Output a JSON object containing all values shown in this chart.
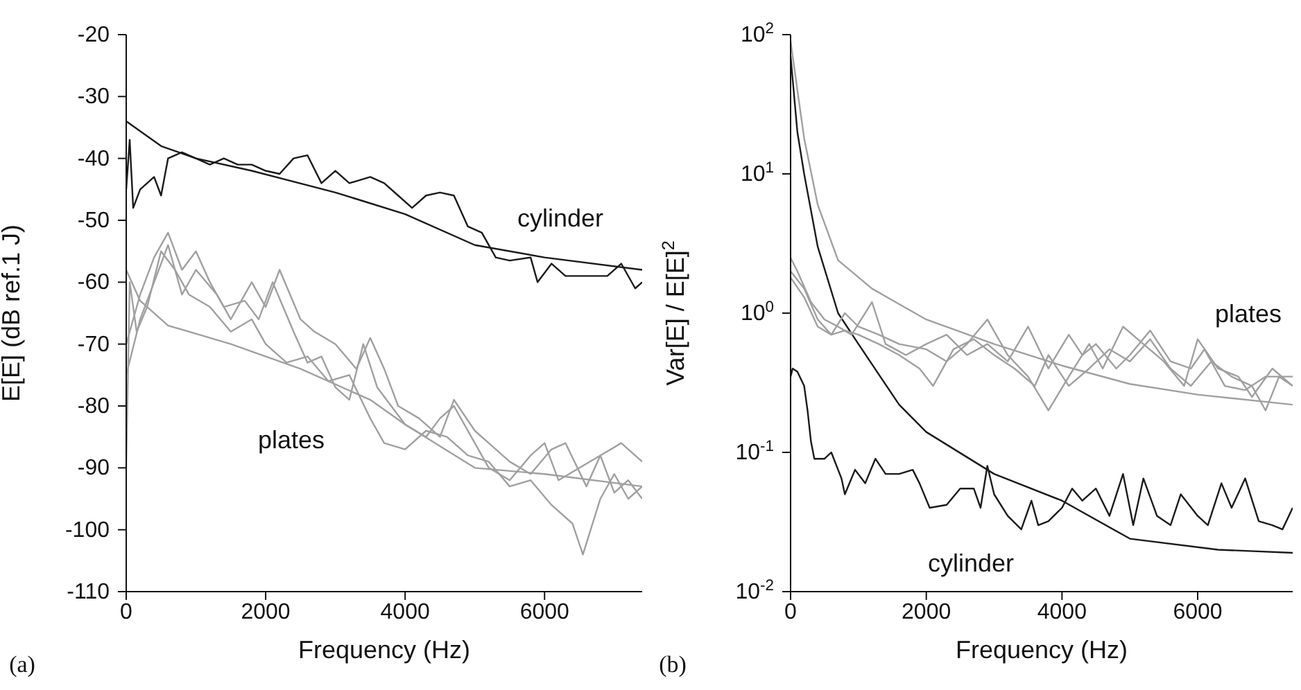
{
  "chart_data": [
    {
      "type": "line",
      "xlabel": "Frequency (Hz)",
      "ylabel": "E[E] (dB ref.1 J)",
      "xlim": [
        0,
        7400
      ],
      "xticks": [
        0,
        2000,
        4000,
        6000
      ],
      "ylim": [
        -110,
        -20
      ],
      "yticks": [
        -110,
        -100,
        -90,
        -80,
        -70,
        -60,
        -50,
        -40,
        -30,
        -20
      ],
      "grid": false,
      "legend": false,
      "marker": "none",
      "line_style": "solid",
      "annotations": [
        "cylinder",
        "plates",
        "(a)"
      ],
      "series": [
        {
          "color": "#1a1a1a",
          "x": [
            0,
            500,
            1000,
            1800,
            3000,
            4000,
            5000,
            6000,
            7400
          ],
          "values": [
            -34,
            -38,
            -40,
            -42,
            -45.5,
            -49,
            -54,
            -56,
            -58
          ]
        },
        {
          "color": "#1a1a1a",
          "x": [
            0,
            50,
            100,
            200,
            400,
            500,
            600,
            800,
            1000,
            1200,
            1400,
            1600,
            1800,
            2000,
            2200,
            2400,
            2600,
            2800,
            3000,
            3200,
            3500,
            3700,
            3900,
            4100,
            4300,
            4500,
            4700,
            4900,
            5100,
            5300,
            5500,
            5800,
            5900,
            6100,
            6300,
            6600,
            6900,
            7100,
            7300,
            7400
          ],
          "values": [
            -45,
            -37,
            -48,
            -45,
            -43,
            -46,
            -40,
            -39,
            -40,
            -41,
            -40,
            -41,
            -41,
            -42,
            -42.5,
            -40,
            -39.5,
            -44,
            -42,
            -44,
            -43,
            -44,
            -46,
            -48,
            -46,
            -45.5,
            -46,
            -51,
            -52,
            -56,
            -56.5,
            -56,
            -60,
            -57,
            -59,
            -59,
            -59,
            -57,
            -61,
            -60
          ]
        },
        {
          "color": "#a0a0a0",
          "x": [
            0,
            200,
            600,
            1500,
            2500,
            3500,
            4000,
            5000,
            6000,
            7400
          ],
          "values": [
            -58,
            -63,
            -67,
            -70,
            -74,
            -79,
            -83,
            -90,
            -91,
            -93
          ]
        },
        {
          "color": "#a0a0a0",
          "x": [
            0,
            50,
            150,
            300,
            500,
            700,
            900,
            1200,
            1500,
            1800,
            2000,
            2300,
            2600,
            2900,
            3200,
            3500,
            3700,
            4000,
            4300,
            4600,
            4900,
            5200,
            5500,
            5800,
            6100,
            6400,
            6550,
            6800,
            7000,
            7200,
            7400
          ],
          "values": [
            -90,
            -60,
            -68,
            -64,
            -55,
            -58,
            -62,
            -64,
            -68,
            -66,
            -70,
            -73,
            -72,
            -76,
            -75,
            -82,
            -86,
            -87,
            -84,
            -85,
            -88,
            -89,
            -93,
            -92,
            -96,
            -99,
            -104,
            -95,
            -91,
            -95,
            -93
          ]
        },
        {
          "color": "#a0a0a0",
          "x": [
            0,
            200,
            400,
            600,
            800,
            1000,
            1200,
            1400,
            1700,
            1900,
            2100,
            2400,
            2600,
            2800,
            3000,
            3200,
            3400,
            3600,
            3800,
            4000,
            4300,
            4500,
            4700,
            5000,
            5200,
            5500,
            5800,
            6000,
            6200,
            6500,
            6800,
            7100,
            7400
          ],
          "values": [
            -70,
            -62,
            -56,
            -52,
            -58,
            -55,
            -60,
            -64,
            -63,
            -66,
            -60,
            -68,
            -73,
            -72,
            -77,
            -79,
            -70,
            -77,
            -80,
            -83,
            -85,
            -82,
            -80,
            -86,
            -90,
            -92,
            -88,
            -86,
            -92,
            -90,
            -88,
            -86,
            -89
          ]
        },
        {
          "color": "#a0a0a0",
          "x": [
            0,
            200,
            400,
            600,
            800,
            1000,
            1300,
            1500,
            1800,
            2000,
            2200,
            2500,
            2700,
            3000,
            3300,
            3500,
            3700,
            3900,
            4200,
            4500,
            4700,
            5000,
            5200,
            5500,
            5800,
            6100,
            6300,
            6600,
            6800,
            7000,
            7200,
            7400
          ],
          "values": [
            -75,
            -66,
            -60,
            -54,
            -62,
            -58,
            -62,
            -66,
            -60,
            -64,
            -58,
            -66,
            -68,
            -70,
            -74,
            -69,
            -74,
            -80,
            -82,
            -85,
            -79,
            -84,
            -86,
            -89,
            -91,
            -87,
            -86,
            -93,
            -88,
            -94,
            -92,
            -95
          ]
        }
      ]
    },
    {
      "type": "line",
      "xlabel": "Frequency (Hz)",
      "ylabel": "Var[E] / E[E]$^{2}$",
      "log": "y",
      "xlim": [
        0,
        7400
      ],
      "xticks": [
        0,
        2000,
        4000,
        6000
      ],
      "ylim": [
        0.01,
        100
      ],
      "yticks": [
        {
          "value": 0.01,
          "label": "10$^{-2}$"
        },
        {
          "value": 0.1,
          "label": "10$^{-1}$"
        },
        {
          "value": 1,
          "label": "10$^{0}$"
        },
        {
          "value": 10,
          "label": "10$^{1}$"
        },
        {
          "value": 100,
          "label": "10$^{2}$"
        }
      ],
      "grid": false,
      "legend": false,
      "marker": "none",
      "line_style": "solid",
      "annotations": [
        "plates",
        "cylinder",
        "(b)"
      ],
      "series": [
        {
          "color": "#1a1a1a",
          "x": [
            0,
            100,
            200,
            400,
            700,
            1000,
            1600,
            2000,
            3000,
            4000,
            5000,
            6300,
            7400
          ],
          "values": [
            70,
            20,
            10,
            3,
            1,
            0.6,
            0.22,
            0.14,
            0.07,
            0.045,
            0.024,
            0.02,
            0.019
          ]
        },
        {
          "color": "#a0a0a0",
          "x": [
            0,
            100,
            200,
            400,
            700,
            1200,
            2000,
            3000,
            4000,
            5000,
            6000,
            7400
          ],
          "values": [
            90,
            40,
            18,
            6,
            2.4,
            1.5,
            0.9,
            0.6,
            0.42,
            0.31,
            0.26,
            0.22
          ]
        },
        {
          "color": "#1a1a1a",
          "x": [
            0,
            30,
            100,
            200,
            250,
            300,
            350,
            500,
            600,
            750,
            800,
            950,
            1100,
            1250,
            1400,
            1600,
            1800,
            1900,
            2050,
            2300,
            2500,
            2700,
            2800,
            2900,
            3000,
            3200,
            3400,
            3550,
            3650,
            3800,
            4000,
            4150,
            4300,
            4500,
            4700,
            4900,
            5050,
            5200,
            5400,
            5600,
            5750,
            6000,
            6150,
            6350,
            6500,
            6700,
            6900,
            7100,
            7250,
            7400
          ],
          "values": [
            0.35,
            0.4,
            0.38,
            0.3,
            0.2,
            0.12,
            0.09,
            0.09,
            0.1,
            0.065,
            0.05,
            0.075,
            0.06,
            0.09,
            0.07,
            0.07,
            0.075,
            0.06,
            0.04,
            0.042,
            0.055,
            0.055,
            0.04,
            0.08,
            0.05,
            0.035,
            0.028,
            0.045,
            0.03,
            0.032,
            0.04,
            0.055,
            0.045,
            0.055,
            0.035,
            0.07,
            0.03,
            0.065,
            0.035,
            0.03,
            0.05,
            0.035,
            0.03,
            0.06,
            0.04,
            0.065,
            0.032,
            0.03,
            0.028,
            0.04
          ]
        },
        {
          "color": "#a0a0a0",
          "x": [
            0,
            100,
            300,
            500,
            700,
            900,
            1200,
            1400,
            1700,
            2000,
            2300,
            2600,
            2900,
            3200,
            3500,
            3800,
            4100,
            4300,
            4500,
            4800,
            5000,
            5300,
            5600,
            5900,
            6100,
            6400,
            6700,
            7000,
            7400
          ],
          "values": [
            2.5,
            2.0,
            1.2,
            0.9,
            0.8,
            0.7,
            1.2,
            0.6,
            0.5,
            0.6,
            0.7,
            0.5,
            0.6,
            0.45,
            0.8,
            0.4,
            0.7,
            0.5,
            0.6,
            0.4,
            0.5,
            0.75,
            0.45,
            0.4,
            0.55,
            0.3,
            0.28,
            0.35,
            0.35
          ]
        },
        {
          "color": "#a0a0a0",
          "x": [
            0,
            200,
            400,
            600,
            800,
            1000,
            1300,
            1600,
            2000,
            2300,
            2600,
            2900,
            3200,
            3500,
            3800,
            4100,
            4400,
            4600,
            4900,
            5200,
            5500,
            5800,
            6000,
            6300,
            6600,
            6800,
            7100,
            7400
          ],
          "values": [
            2.0,
            1.5,
            0.9,
            0.7,
            1.0,
            0.8,
            0.7,
            0.6,
            0.55,
            0.45,
            0.6,
            0.9,
            0.5,
            0.35,
            0.2,
            0.35,
            0.6,
            0.4,
            0.8,
            0.6,
            0.45,
            0.3,
            0.65,
            0.4,
            0.35,
            0.25,
            0.4,
            0.3
          ]
        },
        {
          "color": "#a0a0a0",
          "x": [
            0,
            200,
            400,
            600,
            800,
            1000,
            1300,
            1600,
            1900,
            2100,
            2400,
            2700,
            3000,
            3300,
            3600,
            3800,
            4100,
            4400,
            4700,
            5000,
            5300,
            5600,
            5900,
            6200,
            6500,
            6800,
            7000,
            7200,
            7400
          ],
          "values": [
            1.8,
            1.3,
            0.8,
            0.7,
            0.75,
            0.7,
            0.6,
            0.5,
            0.4,
            0.3,
            0.55,
            0.65,
            0.5,
            0.4,
            0.3,
            0.5,
            0.3,
            0.4,
            0.55,
            0.45,
            0.65,
            0.4,
            0.3,
            0.45,
            0.35,
            0.3,
            0.2,
            0.35,
            0.3
          ]
        }
      ]
    }
  ]
}
